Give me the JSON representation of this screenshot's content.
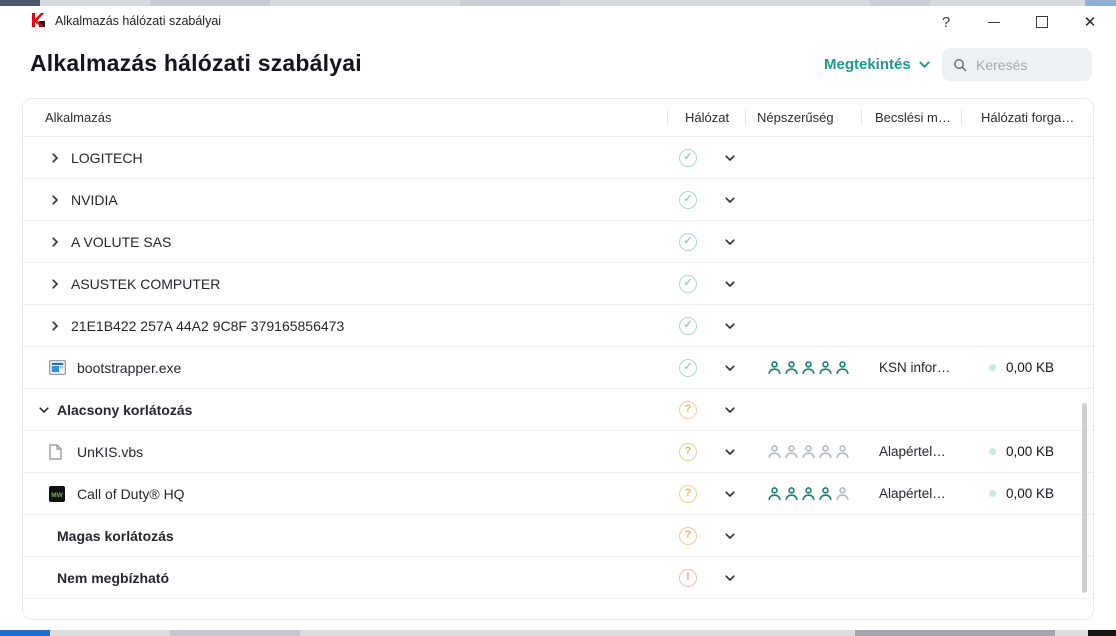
{
  "titlebar": {
    "app_title": "Alkalmazás hálózati szabályai",
    "help_glyph": "?"
  },
  "header": {
    "title": "Alkalmazás hálózati szabályai",
    "view_menu_label": "Megtekintés",
    "search_placeholder": "Keresés"
  },
  "table": {
    "columns": [
      "Alkalmazás",
      "Hálózat",
      "Népszerűség",
      "Becslési m…",
      "Hálózati forga…"
    ],
    "popularity_max": 5,
    "status_glyphs": {
      "ok": "✓",
      "question": "?",
      "alert": "!"
    },
    "colors": {
      "accent_teal": "#1d9b8a",
      "person_green": "#177f6d",
      "person_gray": "#b3bac2",
      "status_ok": "#a8dcc4",
      "status_question": "#f4cc93",
      "status_alert": "#f6b8b5",
      "kaspersky_red": "#e3000f"
    },
    "rows": [
      {
        "kind": "vendor",
        "label": "LOGITECH",
        "expander": "right",
        "status": "ok"
      },
      {
        "kind": "vendor",
        "label": "NVIDIA",
        "expander": "right",
        "status": "ok"
      },
      {
        "kind": "vendor",
        "label": "A VOLUTE SAS",
        "expander": "right",
        "status": "ok"
      },
      {
        "kind": "vendor",
        "label": "ASUSTEK COMPUTER",
        "expander": "right",
        "status": "ok"
      },
      {
        "kind": "vendor",
        "label": "21E1B422 257A 44A2 9C8F 379165856473",
        "expander": "right",
        "status": "ok"
      },
      {
        "kind": "app",
        "label": "bootstrapper.exe",
        "icon": "app-window",
        "status": "ok",
        "popularity": 5,
        "trust": "KSN infor…",
        "traffic": "0,00 KB"
      },
      {
        "kind": "group",
        "label": "Alacsony korlátozás",
        "expander": "down",
        "status": "question"
      },
      {
        "kind": "app",
        "label": "UnKIS.vbs",
        "icon": "file",
        "status": "question",
        "popularity": 0,
        "trust": "Alapértel…",
        "traffic": "0,00 KB"
      },
      {
        "kind": "app",
        "label": "Call of Duty® HQ",
        "icon": "mw-game",
        "status": "question",
        "popularity": 4,
        "trust": "Alapértel…",
        "traffic": "0,00 KB"
      },
      {
        "kind": "group",
        "label": "Magas korlátozás",
        "status": "question"
      },
      {
        "kind": "group",
        "label": "Nem megbízható",
        "status": "alert"
      }
    ]
  }
}
